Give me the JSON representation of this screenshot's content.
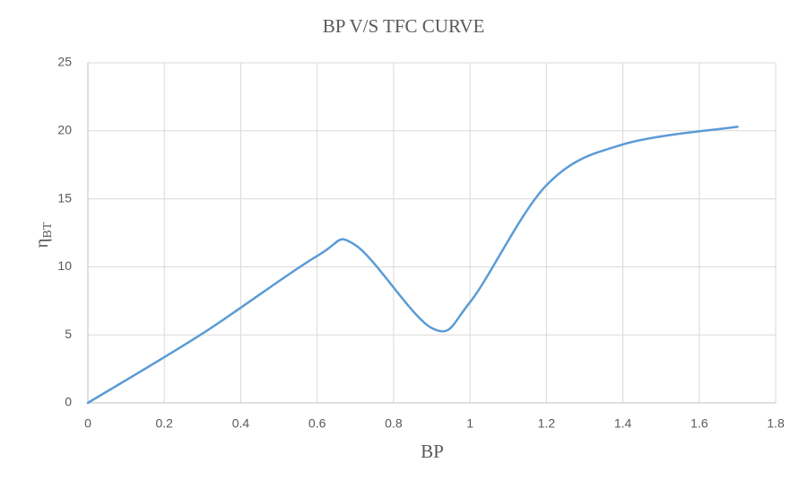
{
  "chart_data": {
    "type": "line",
    "title": "BP V/S TFC CURVE",
    "x_label": "BP",
    "y_label": [
      "η",
      "BT"
    ],
    "series": [
      {
        "color": "#5b9bd5",
        "x": [
          0,
          0.3,
          0.6,
          0.7,
          0.9,
          1.0,
          1.2,
          1.4,
          1.7
        ],
        "values": [
          0,
          5.1,
          10.8,
          11.6,
          5.5,
          7.4,
          16,
          19,
          20.3
        ]
      }
    ],
    "xlim": [
      0,
      1.8
    ],
    "xticks": [
      0,
      0.2,
      0.4,
      0.6,
      0.8,
      1,
      1.2,
      1.4,
      1.6,
      1.8
    ],
    "ylim": [
      0,
      25
    ],
    "yticks": [
      0,
      5,
      10,
      15,
      20,
      25
    ],
    "grid": true
  }
}
